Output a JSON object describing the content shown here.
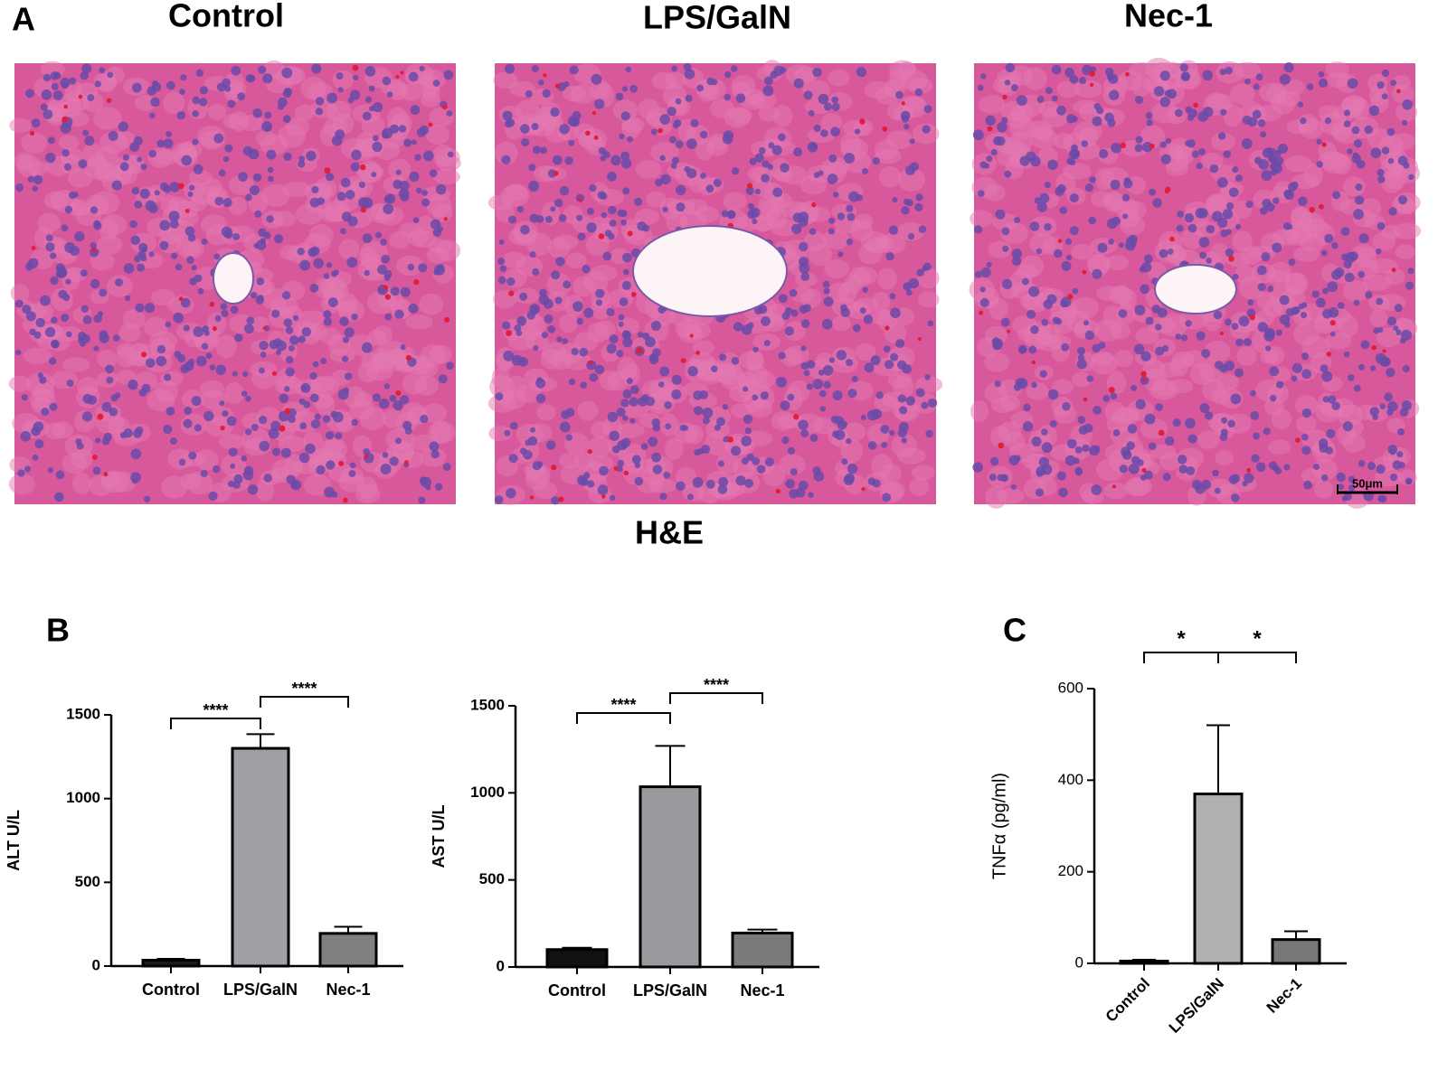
{
  "panel_a": {
    "label": "A",
    "titles": [
      "Control",
      "LPS/GalN",
      "Nec-1"
    ],
    "stain": "H&E",
    "scale_bar": "50μm"
  },
  "panel_labels": [
    "B",
    "C"
  ],
  "chart_data": [
    {
      "type": "bar",
      "y_label": "ALT U/L",
      "categories": [
        "Control",
        "LPS/GalN",
        "Nec-1"
      ],
      "values": [
        35,
        1300,
        195
      ],
      "errors": [
        8,
        85,
        40
      ],
      "colors": [
        "#1a1a1a",
        "#a0a0a4",
        "#808080"
      ],
      "ylim": [
        0,
        1500
      ],
      "yticks": [
        0,
        500,
        1000,
        1500
      ],
      "annotations": [
        {
          "text": "****",
          "between": [
            "Control",
            "LPS/GalN"
          ]
        },
        {
          "text": "****",
          "between": [
            "LPS/GalN",
            "Nec-1"
          ]
        }
      ]
    },
    {
      "type": "bar",
      "y_label": "AST U/L",
      "categories": [
        "Control",
        "LPS/GalN",
        "Nec-1"
      ],
      "values": [
        100,
        1035,
        195
      ],
      "errors": [
        10,
        235,
        20
      ],
      "colors": [
        "#111111",
        "#9a9a9e",
        "#7a7a7a"
      ],
      "ylim": [
        0,
        1500
      ],
      "yticks": [
        0,
        500,
        1000,
        1500
      ],
      "annotations": [
        {
          "text": "****",
          "between": [
            "Control",
            "LPS/GalN"
          ]
        },
        {
          "text": "****",
          "between": [
            "LPS/GalN",
            "Nec-1"
          ]
        }
      ]
    },
    {
      "type": "bar",
      "y_label": "TNFα (pg/ml)",
      "categories": [
        "Control",
        "LPS/GalN",
        "Nec-1"
      ],
      "values": [
        5,
        370,
        52
      ],
      "errors": [
        3,
        150,
        18
      ],
      "colors": [
        "#888888",
        "#b0b0b0",
        "#777777"
      ],
      "ylim": [
        0,
        600
      ],
      "yticks": [
        0,
        200,
        400,
        600
      ],
      "annotations": [
        {
          "text": "*",
          "between": [
            "Control",
            "LPS/GalN"
          ]
        },
        {
          "text": "*",
          "between": [
            "LPS/GalN",
            "Nec-1"
          ]
        }
      ]
    }
  ]
}
